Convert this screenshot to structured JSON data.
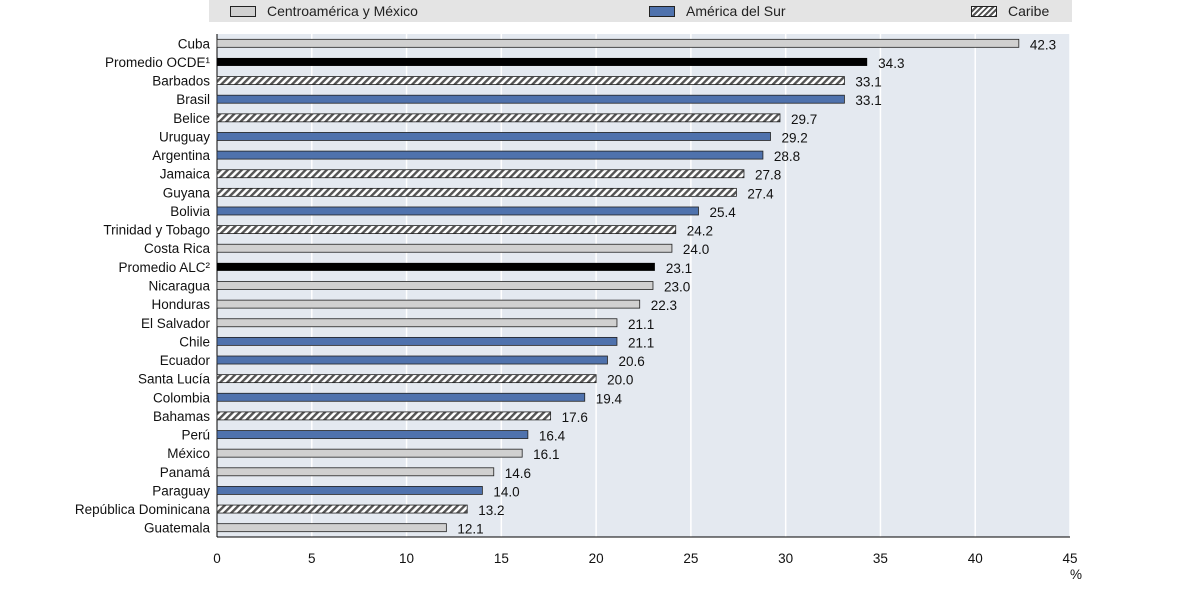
{
  "legend": {
    "items": [
      {
        "label": "Centroamérica y México",
        "group": "cam",
        "icon": "gray-swatch-icon"
      },
      {
        "label": "América del Sur",
        "group": "sam",
        "icon": "blue-swatch-icon"
      },
      {
        "label": "Caribe",
        "group": "car",
        "icon": "hatched-swatch-icon"
      }
    ]
  },
  "colors": {
    "cam": "#d0d0d0",
    "sam": "#4f72ad",
    "car": "hatch",
    "avg": "#000000",
    "plot_bg": "#e4e9f0",
    "grid": "#ffffff"
  },
  "chart_data": {
    "type": "bar",
    "orientation": "horizontal",
    "categories": [
      "Cuba",
      "Promedio OCDE¹",
      "Barbados",
      "Brasil",
      "Belice",
      "Uruguay",
      "Argentina",
      "Jamaica",
      "Guyana",
      "Bolivia",
      "Trinidad y Tobago",
      "Costa Rica",
      "Promedio ALC²",
      "Nicaragua",
      "Honduras",
      "El Salvador",
      "Chile",
      "Ecuador",
      "Santa Lucía",
      "Colombia",
      "Bahamas",
      "Perú",
      "México",
      "Panamá",
      "Paraguay",
      "República Dominicana",
      "Guatemala"
    ],
    "values": [
      42.3,
      34.3,
      33.1,
      33.1,
      29.7,
      29.2,
      28.8,
      27.8,
      27.4,
      25.4,
      24.2,
      24.0,
      23.1,
      23.0,
      22.3,
      21.1,
      21.1,
      20.6,
      20.0,
      19.4,
      17.6,
      16.4,
      16.1,
      14.6,
      14.0,
      13.2,
      12.1
    ],
    "value_labels": [
      "42.3",
      "34.3",
      "33.1",
      "33.1",
      "29.7",
      "29.2",
      "28.8",
      "27.8",
      "27.4",
      "25.4",
      "24.2",
      "24.0",
      "23.1",
      "23.0",
      "22.3",
      "21.1",
      "21.1",
      "20.6",
      "20.0",
      "19.4",
      "17.6",
      "16.4",
      "16.1",
      "14.6",
      "14.0",
      "13.2",
      "12.1"
    ],
    "groups": [
      "cam",
      "avg",
      "car",
      "sam",
      "car",
      "sam",
      "sam",
      "car",
      "car",
      "sam",
      "car",
      "cam",
      "avg",
      "cam",
      "cam",
      "cam",
      "sam",
      "sam",
      "car",
      "sam",
      "car",
      "sam",
      "cam",
      "cam",
      "sam",
      "car",
      "cam"
    ],
    "xlim": [
      0,
      45
    ],
    "xticks": [
      "0",
      "5",
      "10",
      "15",
      "20",
      "25",
      "30",
      "35",
      "40",
      "45"
    ],
    "xunit": "%",
    "grid": "vertical",
    "legend_position": "top"
  }
}
